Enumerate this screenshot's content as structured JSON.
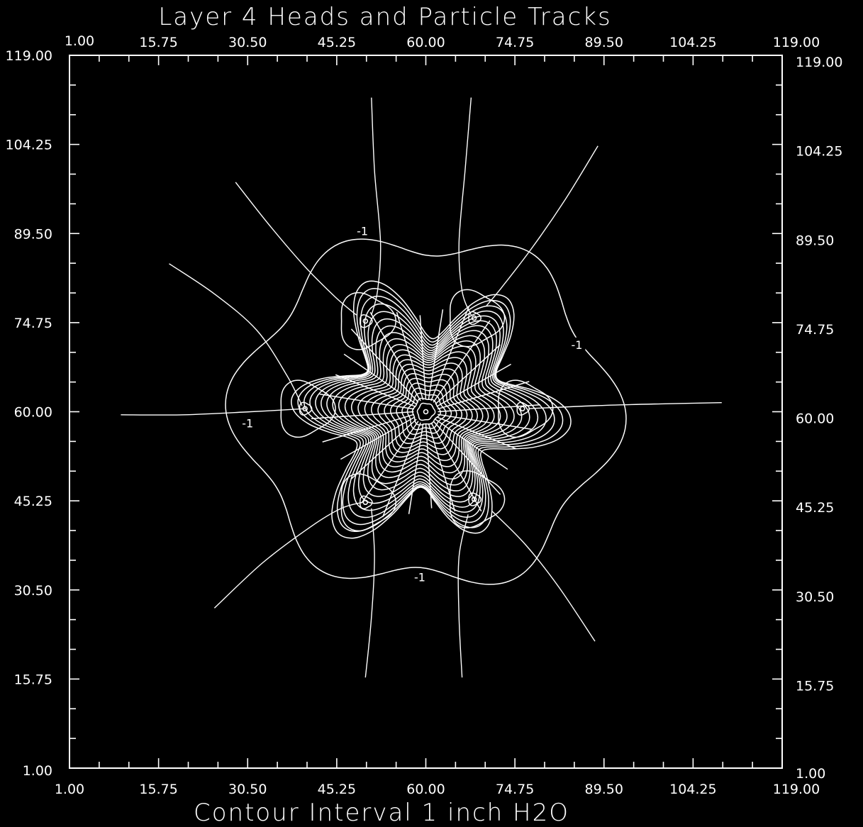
{
  "chart_data": {
    "type": "contour",
    "title": "Layer 4 Heads and Particle Tracks",
    "xlabel": "Contour Interval 1 inch H2O",
    "ylabel": "",
    "xlim": [
      1.0,
      119.0
    ],
    "ylim": [
      1.0,
      119.0
    ],
    "tick_labels": [
      "1.00",
      "15.75",
      "30.50",
      "45.25",
      "60.00",
      "74.75",
      "89.50",
      "104.25",
      "119.00"
    ],
    "contour_interval": 1,
    "contour_interval_unit": "inch H2O",
    "contour_labels": [
      {
        "text": "-1",
        "x": 49.5,
        "y": 89.8
      },
      {
        "text": "-1",
        "x": 59.0,
        "y": 32.5
      },
      {
        "text": "-1",
        "x": 30.5,
        "y": 58.0
      },
      {
        "text": "-1",
        "x": 85.0,
        "y": 71.0
      }
    ],
    "sinks": [
      {
        "x": 60.0,
        "y": 60.0
      },
      {
        "x": 50.0,
        "y": 75.0
      },
      {
        "x": 68.0,
        "y": 75.5
      },
      {
        "x": 40.0,
        "y": 60.5
      },
      {
        "x": 76.0,
        "y": 60.5
      },
      {
        "x": 50.0,
        "y": 45.0
      },
      {
        "x": 68.0,
        "y": 45.5
      }
    ],
    "particle_tracks": [
      {
        "points": [
          [
            51,
            112
          ],
          [
            51.5,
            100
          ],
          [
            52.5,
            88
          ],
          [
            52,
            80
          ],
          [
            51,
            76
          ]
        ]
      },
      {
        "points": [
          [
            67.5,
            112
          ],
          [
            66.5,
            100
          ],
          [
            65.5,
            88
          ],
          [
            66,
            80
          ],
          [
            67.5,
            76
          ]
        ]
      },
      {
        "points": [
          [
            28.5,
            98
          ],
          [
            34,
            91
          ],
          [
            40,
            84
          ],
          [
            45,
            79
          ],
          [
            48.5,
            76
          ]
        ]
      },
      {
        "points": [
          [
            88.5,
            104
          ],
          [
            83,
            95
          ],
          [
            77.5,
            87
          ],
          [
            72.5,
            80.5
          ],
          [
            70,
            77.5
          ]
        ]
      },
      {
        "points": [
          [
            17.5,
            84.5
          ],
          [
            25,
            79.5
          ],
          [
            32,
            73.5
          ],
          [
            37,
            66
          ],
          [
            39.5,
            61
          ]
        ]
      },
      {
        "points": [
          [
            9.5,
            59.5
          ],
          [
            20,
            59.5
          ],
          [
            31,
            60
          ],
          [
            40,
            60.5
          ]
        ]
      },
      {
        "points": [
          [
            109,
            61.5
          ],
          [
            99,
            61.3
          ],
          [
            88,
            61
          ],
          [
            77,
            60.5
          ]
        ]
      },
      {
        "points": [
          [
            25,
            27.5
          ],
          [
            33,
            35
          ],
          [
            41,
            41
          ],
          [
            46,
            44
          ],
          [
            49.5,
            45
          ]
        ]
      },
      {
        "points": [
          [
            50,
            16
          ],
          [
            51,
            26
          ],
          [
            51.5,
            36
          ],
          [
            51,
            44
          ]
        ]
      },
      {
        "points": [
          [
            66,
            16
          ],
          [
            65.5,
            26
          ],
          [
            65.5,
            36
          ],
          [
            67,
            43
          ]
        ]
      },
      {
        "points": [
          [
            88,
            22
          ],
          [
            82,
            31
          ],
          [
            76.5,
            38
          ],
          [
            71,
            43.5
          ]
        ]
      }
    ]
  }
}
